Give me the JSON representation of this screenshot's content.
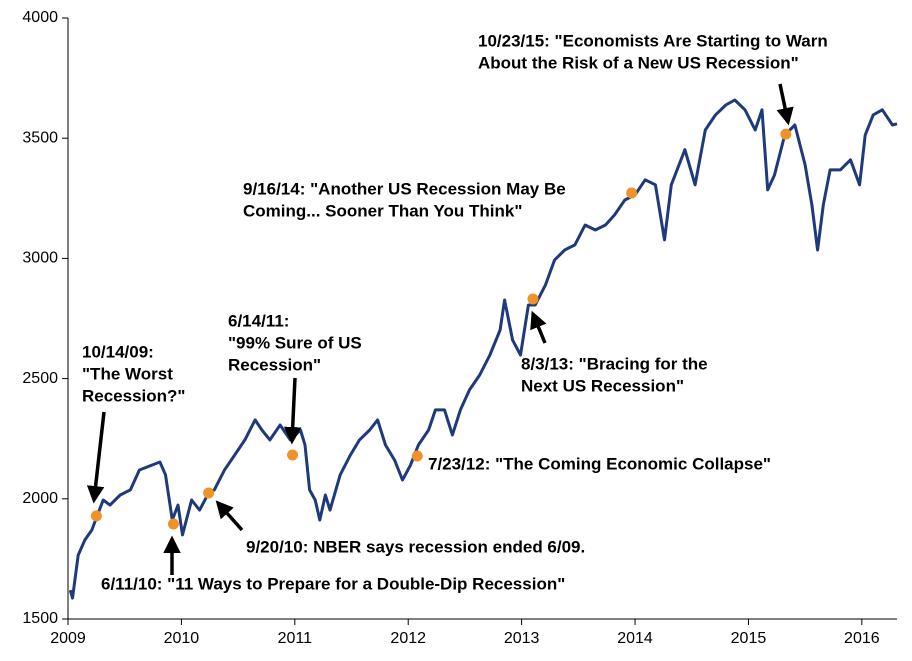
{
  "chart_data": {
    "type": "line",
    "x": [
      2009.02,
      2009.04,
      2009.09,
      2009.15,
      2009.21,
      2009.26,
      2009.31,
      2009.37,
      2009.46,
      2009.55,
      2009.63,
      2009.81,
      2009.86,
      2009.92,
      2009.97,
      2010.01,
      2010.09,
      2010.16,
      2010.23,
      2010.29,
      2010.38,
      2010.47,
      2010.56,
      2010.65,
      2010.71,
      2010.78,
      2010.87,
      2010.96,
      2011.05,
      2011.09,
      2011.13,
      2011.18,
      2011.22,
      2011.27,
      2011.31,
      2011.4,
      2011.49,
      2011.57,
      2011.66,
      2011.73,
      2011.8,
      2011.88,
      2011.95,
      2012.02,
      2012.09,
      2012.18,
      2012.24,
      2012.32,
      2012.39,
      2012.46,
      2012.54,
      2012.63,
      2012.72,
      2012.81,
      2012.85,
      2012.92,
      2012.99,
      2013.06,
      2013.12,
      2013.21,
      2013.29,
      2013.38,
      2013.47,
      2013.56,
      2013.65,
      2013.74,
      2013.82,
      2013.91,
      2014.0,
      2014.09,
      2014.18,
      2014.26,
      2014.32,
      2014.44,
      2014.53,
      2014.62,
      2014.71,
      2014.8,
      2014.88,
      2014.97,
      2015.06,
      2015.12,
      2015.17,
      2015.23,
      2015.32,
      2015.41,
      2015.5,
      2015.56,
      2015.61,
      2015.66,
      2015.72,
      2015.81,
      2015.9,
      2015.98,
      2016.03,
      2016.1,
      2016.18,
      2016.27,
      2016.31
    ],
    "values": [
      1620,
      1587,
      1766,
      1830,
      1870,
      1933,
      1995,
      1974,
      2016,
      2037,
      2120,
      2153,
      2100,
      1912,
      1974,
      1850,
      1995,
      1953,
      2016,
      2037,
      2120,
      2182,
      2245,
      2328,
      2286,
      2245,
      2307,
      2245,
      2286,
      2224,
      2037,
      1995,
      1912,
      2016,
      1953,
      2100,
      2182,
      2245,
      2286,
      2328,
      2224,
      2161,
      2078,
      2140,
      2224,
      2286,
      2370,
      2370,
      2266,
      2370,
      2453,
      2515,
      2598,
      2702,
      2827,
      2660,
      2598,
      2806,
      2806,
      2889,
      2993,
      3035,
      3056,
      3139,
      3118,
      3139,
      3181,
      3243,
      3264,
      3327,
      3306,
      3077,
      3306,
      3452,
      3306,
      3534,
      3597,
      3638,
      3659,
      3618,
      3534,
      3618,
      3285,
      3347,
      3513,
      3555,
      3389,
      3222,
      3035,
      3222,
      3368,
      3368,
      3410,
      3306,
      3513,
      3597,
      3618,
      3555,
      3560
    ],
    "color": "#1f3a7a",
    "xlim": [
      2009,
      2016.31
    ],
    "xticks": [
      2009,
      2010,
      2011,
      2012,
      2013,
      2014,
      2015,
      2016
    ],
    "ylim": [
      1500,
      4000
    ],
    "yticks": [
      1500,
      2000,
      2500,
      3000,
      3500,
      4000
    ],
    "marker_color": "#f0922a",
    "annotations": [
      {
        "x": 2009.25,
        "y": 1929,
        "text": [
          "10/14/09:",
          "\"The Worst",
          "Recession?\""
        ]
      },
      {
        "x": 2009.93,
        "y": 1895,
        "text": [
          "6/11/10: \"11 Ways to Prepare for a Double-Dip Recession\""
        ]
      },
      {
        "x": 2010.24,
        "y": 2024,
        "text": [
          "9/20/10: NBER says recession ended 6/09."
        ]
      },
      {
        "x": 2010.98,
        "y": 2182,
        "text": [
          "6/14/11:",
          "\"99% Sure of US",
          "Recession\""
        ]
      },
      {
        "x": 2012.08,
        "y": 2178,
        "text": [
          "7/23/12: \"The Coming Economic Collapse\""
        ]
      },
      {
        "x": 2013.1,
        "y": 2831,
        "text": [
          "8/3/13: \"Bracing for the",
          "Next US Recession\""
        ]
      },
      {
        "x": 2013.97,
        "y": 3272,
        "text": [
          "9/16/14: \"Another US Recession May Be",
          "Coming... Sooner Than You Think\""
        ]
      },
      {
        "x": 2015.33,
        "y": 3517,
        "text": [
          "10/23/15: \"Economists Are Starting to Warn",
          "About the Risk of a New US Recession\""
        ]
      }
    ]
  }
}
